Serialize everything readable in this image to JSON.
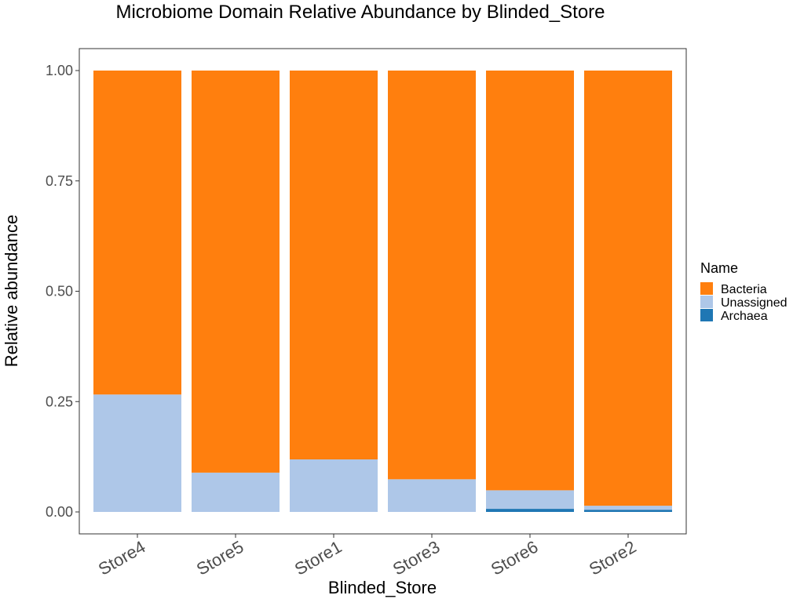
{
  "chart_data": {
    "type": "bar",
    "stacked": true,
    "title": "Microbiome Domain Relative Abundance by Blinded_Store",
    "xlabel": "Blinded_Store",
    "ylabel": "Relative abundance",
    "ylim": [
      0,
      1
    ],
    "yticks": [
      0.0,
      0.25,
      0.5,
      0.75,
      1.0
    ],
    "ytick_labels": [
      "0.00",
      "0.25",
      "0.50",
      "0.75",
      "1.00"
    ],
    "categories": [
      "Store4",
      "Store5",
      "Store1",
      "Store3",
      "Store6",
      "Store2"
    ],
    "series": [
      {
        "name": "Archaea",
        "color": "#1f77b4",
        "values": [
          0.0,
          0.0,
          0.0,
          0.0,
          0.007,
          0.005
        ]
      },
      {
        "name": "Unassigned",
        "color": "#aec7e8",
        "values": [
          0.266,
          0.089,
          0.119,
          0.074,
          0.042,
          0.009
        ]
      },
      {
        "name": "Bacteria",
        "color": "#ff7f0e",
        "values": [
          0.734,
          0.911,
          0.881,
          0.926,
          0.951,
          0.986
        ]
      }
    ],
    "legend": {
      "title": "Name",
      "position": "right",
      "order": [
        "Bacteria",
        "Unassigned",
        "Archaea"
      ]
    },
    "grid": false
  }
}
